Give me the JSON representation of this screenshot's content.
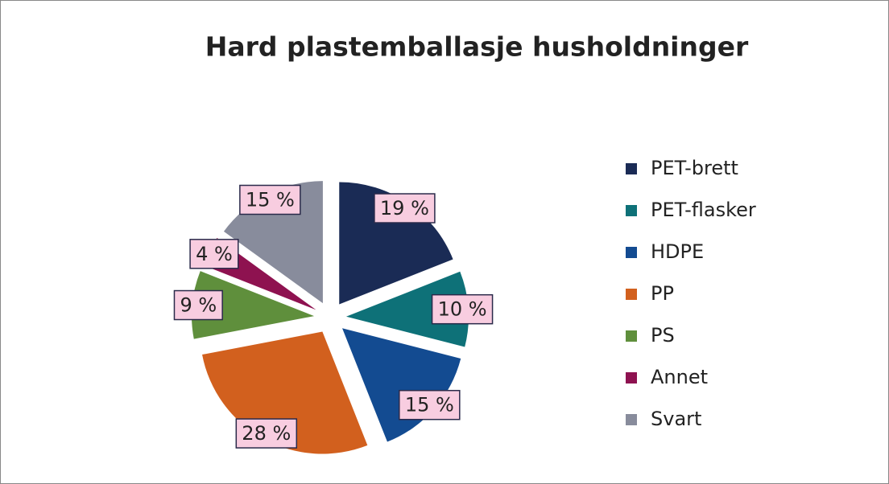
{
  "chart_data": {
    "type": "pie",
    "title": "Hard plastemballasje husholdninger",
    "categories": [
      "PET-brett",
      "PET-flasker",
      "HDPE",
      "PP",
      "PS",
      "Annet",
      "Svart"
    ],
    "values": [
      19,
      10,
      15,
      28,
      9,
      4,
      15
    ],
    "value_labels": [
      "19 %",
      "10 %",
      "15 %",
      "28 %",
      "9 %",
      "4 %",
      "15 %"
    ],
    "colors": [
      "#1a2b55",
      "#0e7178",
      "#134b91",
      "#d2601e",
      "#5f8f3c",
      "#8e1250",
      "#888c9c"
    ],
    "legend": "right"
  }
}
